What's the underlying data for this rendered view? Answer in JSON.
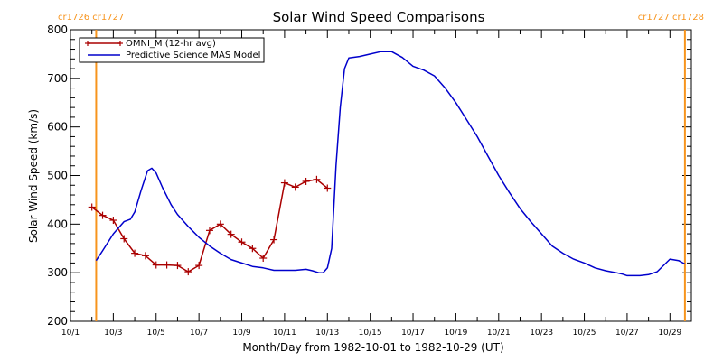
{
  "chart_data": {
    "type": "line",
    "title": "Solar Wind Speed Comparisons",
    "xlabel": "Month/Day from 1982-10-01 to 1982-10-29 (UT)",
    "ylabel": "Solar Wind Speed (km/s)",
    "xlim": [
      0,
      29
    ],
    "ylim": [
      200,
      800
    ],
    "yticks": [
      200,
      300,
      400,
      500,
      600,
      700,
      800
    ],
    "xticks": [
      {
        "day": 0,
        "label": "10/1"
      },
      {
        "day": 2,
        "label": "10/3"
      },
      {
        "day": 4,
        "label": "10/5"
      },
      {
        "day": 6,
        "label": "10/7"
      },
      {
        "day": 8,
        "label": "10/9"
      },
      {
        "day": 10,
        "label": "10/11"
      },
      {
        "day": 12,
        "label": "10/13"
      },
      {
        "day": 14,
        "label": "10/15"
      },
      {
        "day": 16,
        "label": "10/17"
      },
      {
        "day": 18,
        "label": "10/19"
      },
      {
        "day": 20,
        "label": "10/21"
      },
      {
        "day": 22,
        "label": "10/23"
      },
      {
        "day": 24,
        "label": "10/25"
      },
      {
        "day": 26,
        "label": "10/27"
      },
      {
        "day": 28,
        "label": "10/29"
      }
    ],
    "legend_position": "top-left",
    "carrington_markers": [
      {
        "day": 1.2,
        "label": "cr1726 cr1727",
        "anchor": "start-left"
      },
      {
        "day": 28.7,
        "label": "cr1727 cr1728",
        "anchor": "end-right"
      }
    ],
    "marker_color": "#f7941d",
    "series": [
      {
        "name": "OMNI_M (12-hr avg)",
        "color": "#aa0000",
        "marker": "plus",
        "segments": [
          {
            "x": [
              1.0,
              1.5,
              2.0,
              2.5,
              3.0,
              3.5,
              4.0,
              4.5,
              5.0,
              5.5,
              6.0,
              6.5,
              7.0,
              7.5,
              8.0,
              8.5,
              9.0,
              9.5,
              10.0,
              10.5,
              11.0,
              11.5,
              12.0
            ],
            "y": [
              435,
              418,
              408,
              370,
              340,
              335,
              316,
              316,
              315,
              302,
              315,
              387,
              400,
              379,
              363,
              350,
              330,
              368,
              485,
              476,
              488,
              492,
              474
            ]
          }
        ]
      },
      {
        "name": "Predictive Science MAS Model",
        "color": "#0000cc",
        "marker": "none",
        "x": [
          1.2,
          1.5,
          2.0,
          2.5,
          2.8,
          3.0,
          3.3,
          3.6,
          3.8,
          4.0,
          4.3,
          4.7,
          5.0,
          5.5,
          6.0,
          6.5,
          7.0,
          7.5,
          8.0,
          8.5,
          9.0,
          9.5,
          10.0,
          10.5,
          11.0,
          11.3,
          11.6,
          11.8,
          12.0,
          12.2,
          12.4,
          12.6,
          12.8,
          13.0,
          13.5,
          14.0,
          14.5,
          15.0,
          15.5,
          16.0,
          16.5,
          17.0,
          17.5,
          18.0,
          18.5,
          19.0,
          19.5,
          20.0,
          20.5,
          21.0,
          21.5,
          22.0,
          22.5,
          23.0,
          23.5,
          24.0,
          24.5,
          25.0,
          25.5,
          25.8,
          26.0,
          26.3,
          26.6,
          27.0,
          27.4,
          27.7,
          28.0,
          28.4,
          28.7
        ],
        "y": [
          325,
          345,
          380,
          405,
          410,
          425,
          470,
          510,
          515,
          505,
          475,
          440,
          420,
          395,
          373,
          355,
          340,
          327,
          320,
          313,
          310,
          305,
          305,
          305,
          307,
          304,
          300,
          300,
          310,
          350,
          520,
          640,
          720,
          742,
          745,
          750,
          755,
          755,
          743,
          725,
          717,
          705,
          680,
          650,
          615,
          580,
          540,
          500,
          465,
          432,
          405,
          380,
          355,
          340,
          328,
          320,
          310,
          304,
          300,
          297,
          294,
          294,
          294,
          296,
          302,
          315,
          328,
          325,
          318
        ]
      }
    ]
  }
}
